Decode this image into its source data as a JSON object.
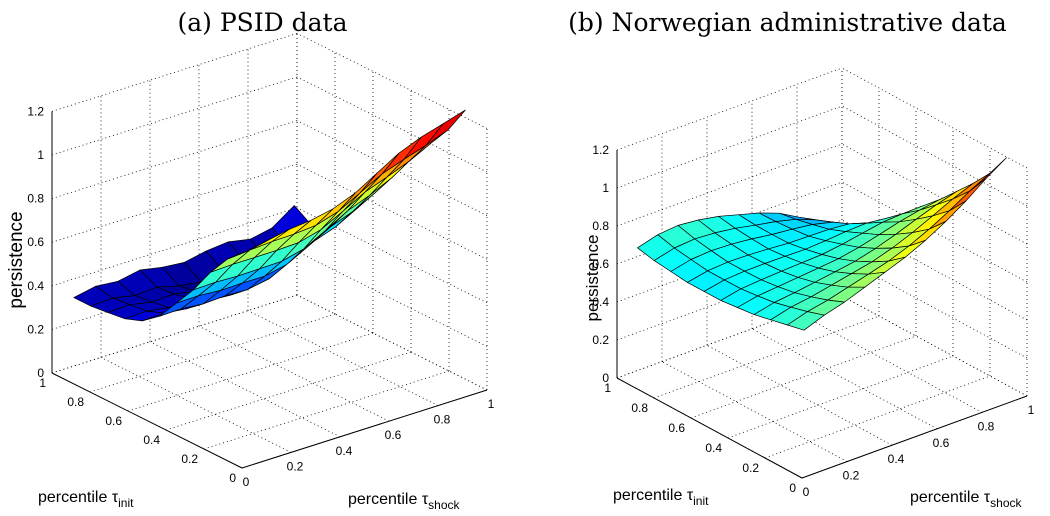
{
  "chart_data": [
    {
      "type": "surface",
      "title": "(a) PSID data",
      "zlabel": "persistence",
      "xlabel_main": "percentile τ",
      "xlabel_sub": "init",
      "ylabel_main": "percentile τ",
      "ylabel_sub": "shock",
      "zlim": [
        0,
        1.2
      ],
      "zticks": [
        "0",
        "0.2",
        "0.4",
        "0.6",
        "0.8",
        "1",
        "1.2"
      ],
      "init_ticks": [
        "0",
        "0.2",
        "0.4",
        "0.6",
        "0.8",
        "1"
      ],
      "shock_ticks": [
        "0",
        "0.2",
        "0.4",
        "0.6",
        "0.8",
        "1"
      ],
      "grid": true,
      "colormap": "jet",
      "surface": {
        "init_grid": [
          0.05,
          0.14,
          0.23,
          0.32,
          0.41,
          0.5,
          0.59,
          0.68,
          0.77,
          0.86,
          0.95
        ],
        "shock_grid": [
          0.05,
          0.14,
          0.23,
          0.32,
          0.41,
          0.5,
          0.59,
          0.68,
          0.77,
          0.86,
          0.95
        ],
        "edge_init_low": [
          0.95,
          0.97,
          0.99,
          1.0,
          1.02,
          1.06,
          1.12,
          1.18,
          1.22,
          1.25,
          1.28
        ],
        "edge_init_high": [
          0.35,
          0.37,
          0.36,
          0.38,
          0.36,
          0.35,
          0.37,
          0.38,
          0.36,
          0.38,
          0.45
        ],
        "edge_shock_low": [
          0.95,
          0.88,
          0.78,
          0.66,
          0.56,
          0.46,
          0.4,
          0.37,
          0.36,
          0.35,
          0.35
        ],
        "edge_shock_high": [
          1.28,
          1.15,
          1.05,
          0.95,
          0.85,
          0.75,
          0.66,
          0.57,
          0.48,
          0.4,
          0.45
        ],
        "dip": 0.08
      }
    },
    {
      "type": "surface",
      "title": "(b) Norwegian administrative data",
      "zlabel": "persistence",
      "xlabel_main": "percentile τ",
      "xlabel_sub": "init",
      "ylabel_main": "percentile τ",
      "ylabel_sub": "shock",
      "zlim": [
        0,
        1.2
      ],
      "zticks": [
        "0",
        "0.2",
        "0.4",
        "0.6",
        "0.8",
        "1",
        "1.2"
      ],
      "init_ticks": [
        "0",
        "0.2",
        "0.4",
        "0.6",
        "0.8",
        "1"
      ],
      "shock_ticks": [
        "0",
        "0.2",
        "0.4",
        "0.6",
        "0.8",
        "1"
      ],
      "grid": true,
      "colormap": "jet",
      "surface": {
        "init_grid": [
          0.05,
          0.14,
          0.23,
          0.32,
          0.41,
          0.5,
          0.59,
          0.68,
          0.77,
          0.86,
          0.95
        ],
        "shock_grid": [
          0.05,
          0.14,
          0.23,
          0.32,
          0.41,
          0.5,
          0.59,
          0.68,
          0.77,
          0.86,
          0.95
        ],
        "edge_init_low": [
          0.73,
          0.77,
          0.8,
          0.84,
          0.88,
          0.92,
          0.97,
          1.03,
          1.1,
          1.18,
          1.25
        ],
        "edge_init_high": [
          0.69,
          0.72,
          0.73,
          0.72,
          0.7,
          0.67,
          0.64,
          0.6,
          0.54,
          0.44,
          0.34
        ],
        "edge_shock_low": [
          0.73,
          0.71,
          0.69,
          0.67,
          0.66,
          0.65,
          0.65,
          0.65,
          0.66,
          0.67,
          0.69
        ],
        "edge_shock_high": [
          1.25,
          1.12,
          1.02,
          0.93,
          0.84,
          0.76,
          0.67,
          0.58,
          0.5,
          0.42,
          0.34
        ],
        "dip": 0.05
      }
    }
  ]
}
